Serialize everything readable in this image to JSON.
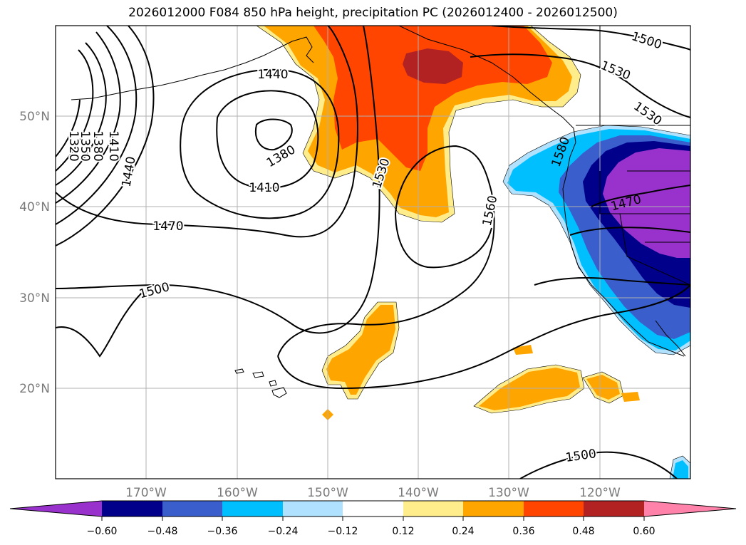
{
  "title": "2026012000 F084 850 hPa height, precipitation PC (2026012400 - 2026012500)",
  "colors": {
    "neg_060": "#9932cc",
    "neg_048": "#00008b",
    "neg_036": "#3a5fcd",
    "neg_024": "#00bfff",
    "neg_012": "#b0e2ff",
    "pos_012": "#ffec8b",
    "pos_024": "#ffa500",
    "pos_036": "#ff4500",
    "pos_048": "#b22222",
    "pos_060": "#ff82ab",
    "neutral": "#ffffff",
    "contour": "#000000",
    "grid": "#b0b0b0"
  },
  "lat_labels": [
    "50°N",
    "40°N",
    "30°N",
    "20°N"
  ],
  "lon_labels": [
    "170°W",
    "160°W",
    "150°W",
    "140°W",
    "130°W",
    "120°W"
  ],
  "colorbar": {
    "tick_labels": [
      "−0.60",
      "−0.48",
      "−0.36",
      "−0.24",
      "−0.12",
      "0.12",
      "0.24",
      "0.36",
      "0.48",
      "0.60"
    ]
  },
  "contour_labels": {
    "c1320": "1320",
    "c1350": "1350",
    "c1380w": "1380",
    "c1410w": "1410",
    "c1440w": "1440",
    "c1440n": "1440",
    "c1380": "1380",
    "c1410": "1410",
    "c1470": "1470",
    "c1500": "1500",
    "c1530": "1530",
    "c1560": "1560",
    "c1580": "1580",
    "c1470e": "1470",
    "c1500ne": "1500",
    "c1530ne": "1530",
    "c1530e": "1530",
    "c1500s": "1500"
  }
}
